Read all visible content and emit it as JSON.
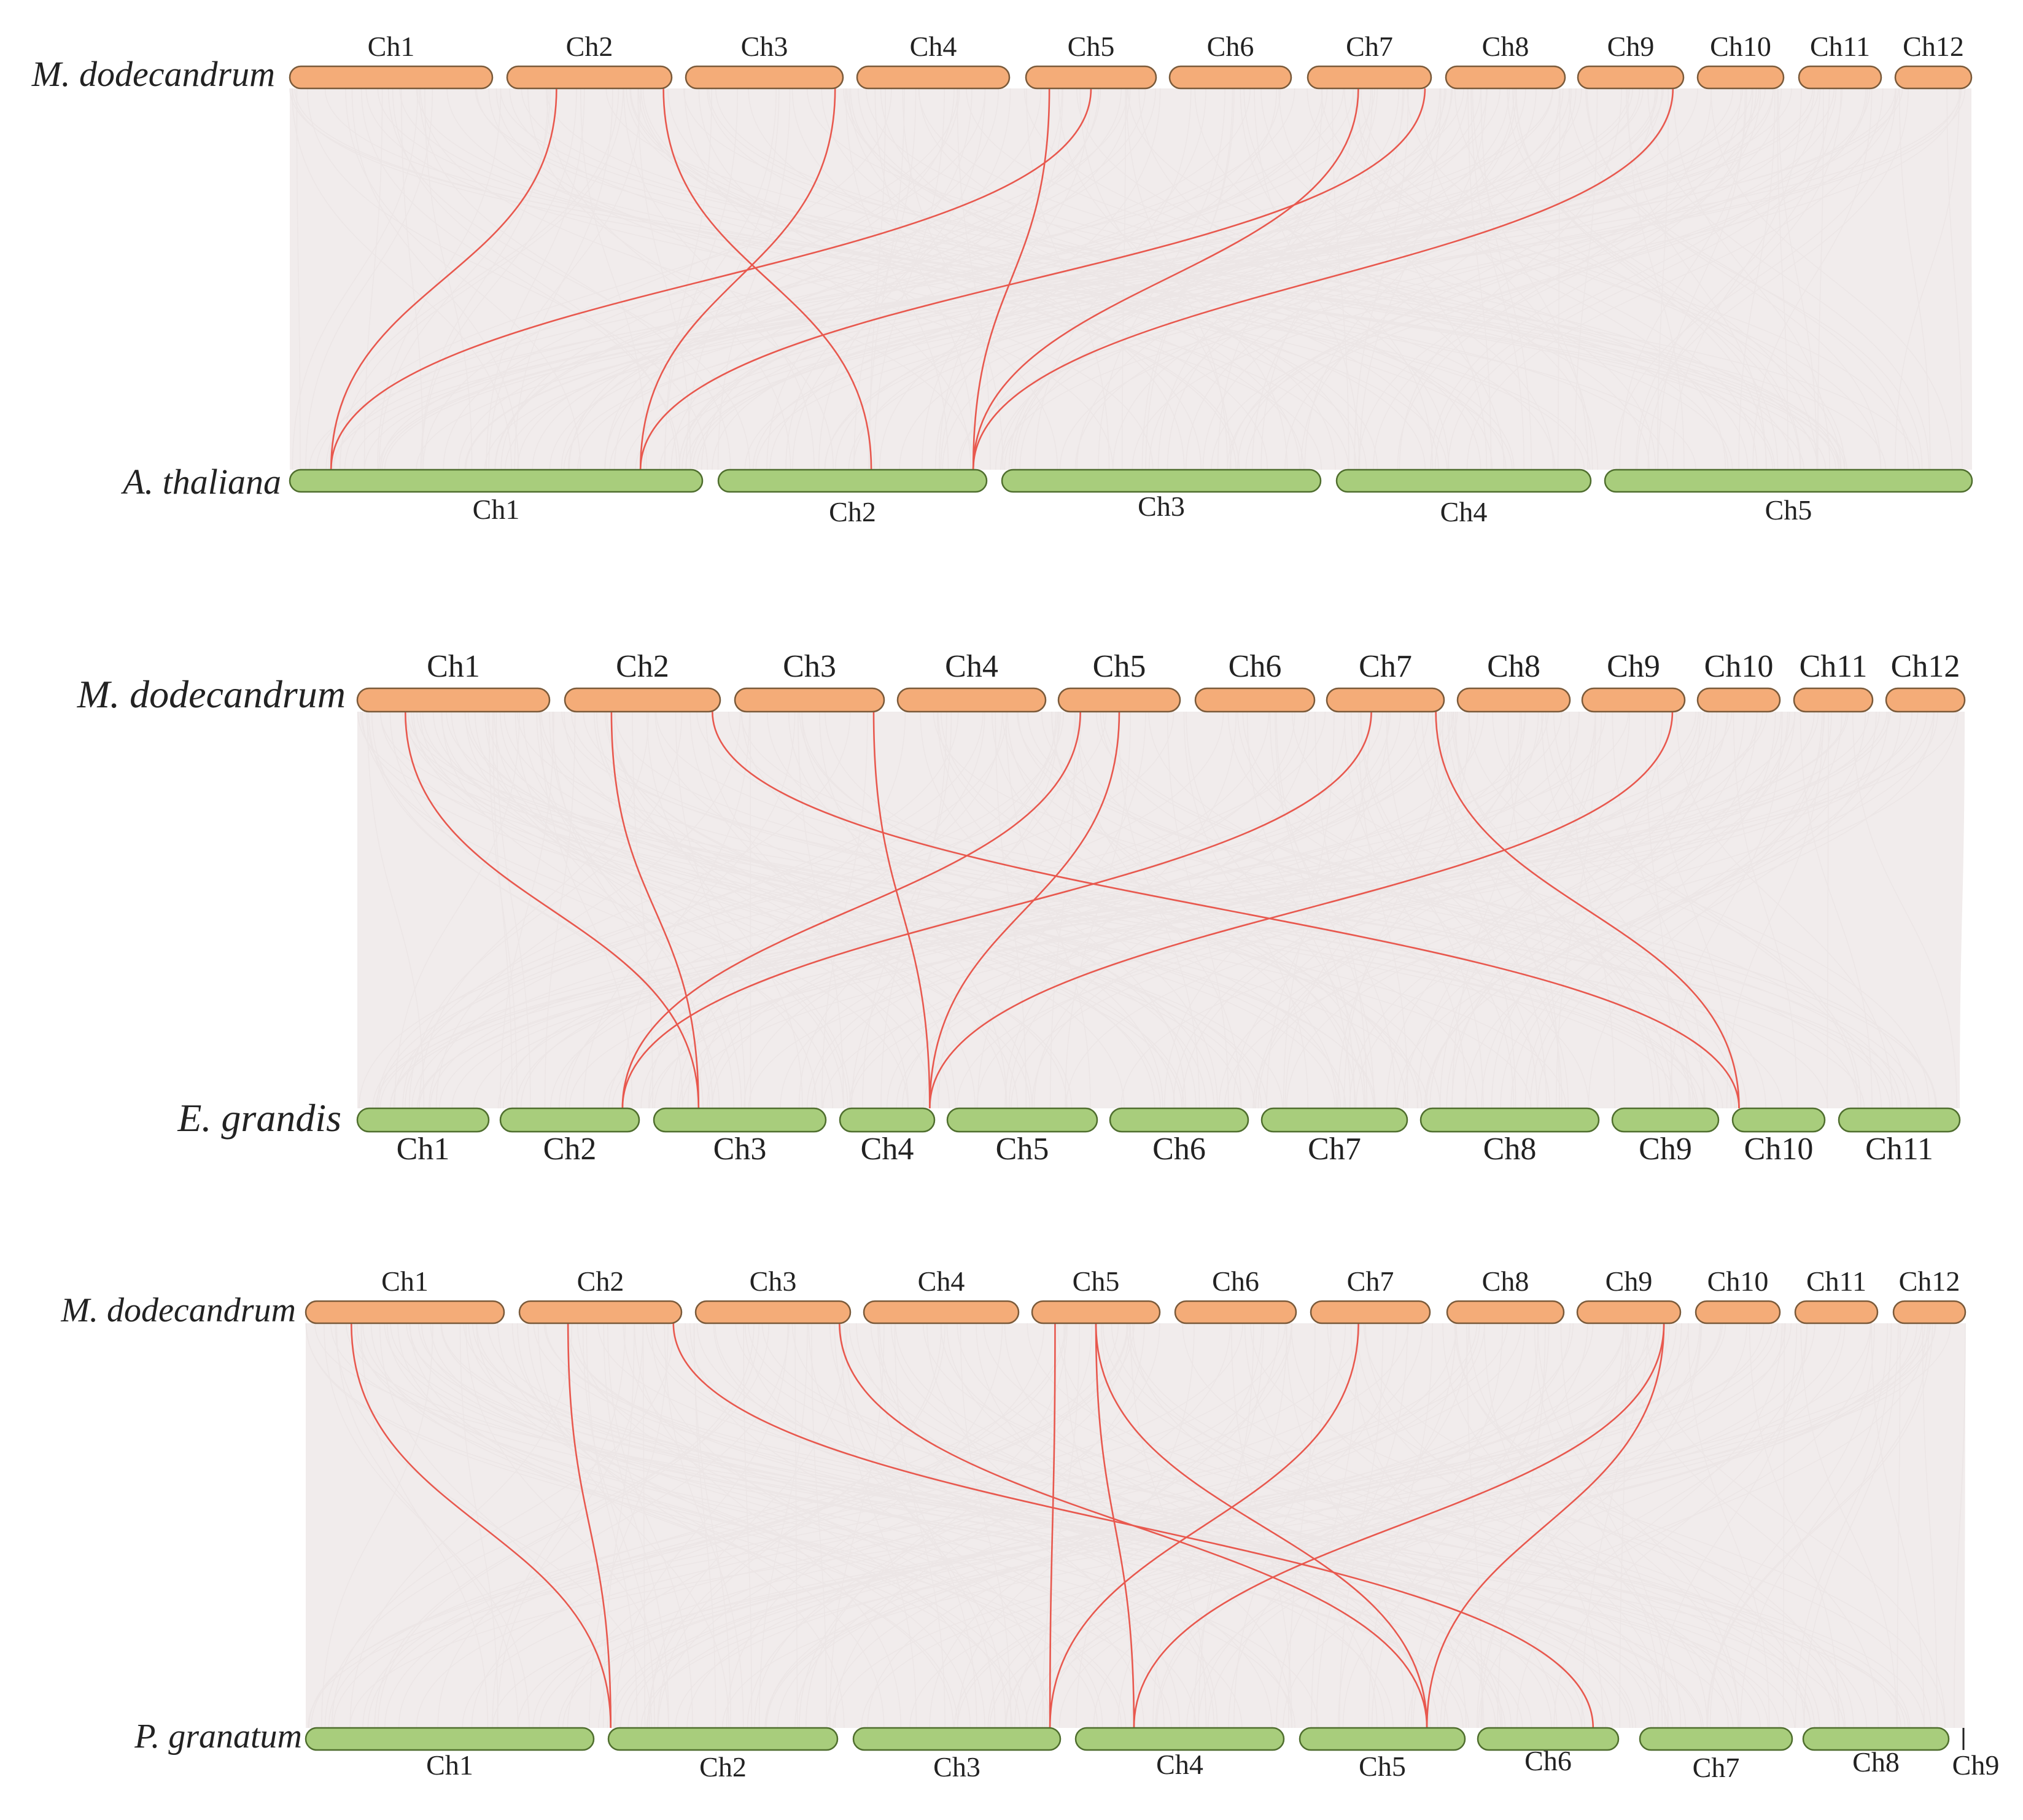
{
  "colors": {
    "top_chromosome": "#f4ac78",
    "bottom_chromosome": "#a8cd7c",
    "highlight_link": "#e8584e",
    "background_link": "#ece6e6",
    "text": "#222222"
  },
  "panels": [
    {
      "id": "at",
      "top": {
        "species": "M. dodecandrum",
        "chromosomes": [
          "Ch1",
          "Ch2",
          "Ch3",
          "Ch4",
          "Ch5",
          "Ch6",
          "Ch7",
          "Ch8",
          "Ch9",
          "Ch10",
          "Ch11",
          "Ch12"
        ]
      },
      "bottom": {
        "species": "A. thaliana",
        "chromosomes": [
          "Ch1",
          "Ch2",
          "Ch3",
          "Ch4",
          "Ch5"
        ]
      },
      "links": [
        {
          "from": [
            "Ch2",
            0.3
          ],
          "to": [
            "Ch1",
            0.1
          ]
        },
        {
          "from": [
            "Ch2",
            0.95
          ],
          "to": [
            "Ch2",
            0.57
          ]
        },
        {
          "from": [
            "Ch3",
            0.95
          ],
          "to": [
            "Ch1",
            0.85
          ]
        },
        {
          "from": [
            "Ch5",
            0.18
          ],
          "to": [
            "Ch2",
            0.95
          ]
        },
        {
          "from": [
            "Ch5",
            0.5
          ],
          "to": [
            "Ch1",
            0.1
          ]
        },
        {
          "from": [
            "Ch7",
            0.41
          ],
          "to": [
            "Ch2",
            0.95
          ]
        },
        {
          "from": [
            "Ch7",
            0.95
          ],
          "to": [
            "Ch1",
            0.85
          ]
        },
        {
          "from": [
            "Ch9",
            0.9
          ],
          "to": [
            "Ch2",
            0.95
          ]
        }
      ]
    },
    {
      "id": "eg",
      "top": {
        "species": "M. dodecandrum",
        "chromosomes": [
          "Ch1",
          "Ch2",
          "Ch3",
          "Ch4",
          "Ch5",
          "Ch6",
          "Ch7",
          "Ch8",
          "Ch9",
          "Ch10",
          "Ch11",
          "Ch12"
        ]
      },
      "bottom": {
        "species": "E. grandis",
        "chromosomes": [
          "Ch1",
          "Ch2",
          "Ch3",
          "Ch4",
          "Ch5",
          "Ch6",
          "Ch7",
          "Ch8",
          "Ch9",
          "Ch10",
          "Ch11"
        ]
      },
      "links": [
        {
          "from": [
            "Ch1",
            0.25
          ],
          "to": [
            "Ch3",
            0.26
          ]
        },
        {
          "from": [
            "Ch2",
            0.3
          ],
          "to": [
            "Ch3",
            0.26
          ]
        },
        {
          "from": [
            "Ch2",
            0.95
          ],
          "to": [
            "Ch10",
            0.07
          ]
        },
        {
          "from": [
            "Ch3",
            0.93
          ],
          "to": [
            "Ch4",
            0.95
          ]
        },
        {
          "from": [
            "Ch5",
            0.5
          ],
          "to": [
            "Ch4",
            0.95
          ]
        },
        {
          "from": [
            "Ch5",
            0.18
          ],
          "to": [
            "Ch2",
            0.88
          ]
        },
        {
          "from": [
            "Ch7",
            0.38
          ],
          "to": [
            "Ch2",
            0.88
          ]
        },
        {
          "from": [
            "Ch7",
            0.93
          ],
          "to": [
            "Ch10",
            0.07
          ]
        },
        {
          "from": [
            "Ch9",
            0.88
          ],
          "to": [
            "Ch4",
            0.95
          ]
        }
      ]
    },
    {
      "id": "pg",
      "top": {
        "species": "M. dodecandrum",
        "chromosomes": [
          "Ch1",
          "Ch2",
          "Ch3",
          "Ch4",
          "Ch5",
          "Ch6",
          "Ch7",
          "Ch8",
          "Ch9",
          "Ch10",
          "Ch11",
          "Ch12"
        ]
      },
      "bottom": {
        "species": "P. granatum",
        "chromosomes": [
          "Ch1",
          "Ch2",
          "Ch3",
          "Ch4",
          "Ch5",
          "Ch6",
          "Ch7",
          "Ch8",
          "Ch9"
        ]
      },
      "links": [
        {
          "from": [
            "Ch1",
            0.23
          ],
          "to": [
            "Ch2",
            0.01
          ]
        },
        {
          "from": [
            "Ch2",
            0.3
          ],
          "to": [
            "Ch2",
            0.01
          ]
        },
        {
          "from": [
            "Ch2",
            0.95
          ],
          "to": [
            "Ch6",
            0.82
          ]
        },
        {
          "from": [
            "Ch3",
            0.93
          ],
          "to": [
            "Ch5",
            0.77
          ]
        },
        {
          "from": [
            "Ch5",
            0.18
          ],
          "to": [
            "Ch3",
            0.95
          ]
        },
        {
          "from": [
            "Ch5",
            0.5
          ],
          "to": [
            "Ch4",
            0.28
          ]
        },
        {
          "from": [
            "Ch5",
            0.5
          ],
          "to": [
            "Ch5",
            0.77
          ]
        },
        {
          "from": [
            "Ch7",
            0.4
          ],
          "to": [
            "Ch3",
            0.95
          ]
        },
        {
          "from": [
            "Ch9",
            0.84
          ],
          "to": [
            "Ch4",
            0.28
          ]
        },
        {
          "from": [
            "Ch9",
            0.84
          ],
          "to": [
            "Ch5",
            0.77
          ]
        }
      ]
    }
  ]
}
